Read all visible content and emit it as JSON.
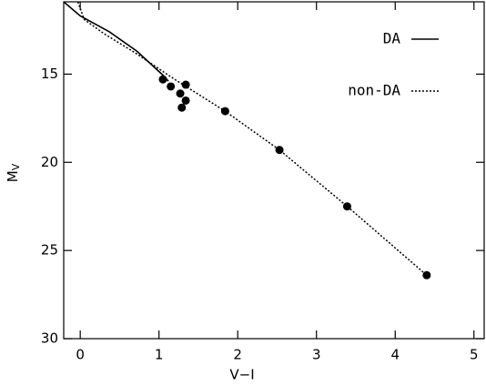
{
  "chart_data": {
    "type": "scatter",
    "x_label": "V−I",
    "y_label": "M",
    "y_label_subscript": "V",
    "xlim": [
      -0.21,
      5.13
    ],
    "ylim": [
      10.9,
      30
    ],
    "y_inverted": true,
    "xticks": [
      0,
      1,
      2,
      3,
      4,
      5
    ],
    "yticks": [
      15,
      20,
      25,
      30
    ],
    "color": "#000000",
    "legend": "upper right",
    "series": [
      {
        "name": "DA",
        "style": "solid",
        "x": [
          -0.21,
          0,
          0.37,
          0.72,
          1.06,
          1.12
        ],
        "values": [
          10.9,
          11.7,
          12.6,
          13.7,
          15.1,
          15.4
        ]
      },
      {
        "name": "non-DA",
        "style": "dotted",
        "x": [
          -0.03,
          0.05,
          0.3,
          0.7,
          1.2,
          1.84,
          2.53,
          3.39,
          4.4
        ],
        "values": [
          10.9,
          11.9,
          12.7,
          13.8,
          15.3,
          17.1,
          19.3,
          22.5,
          26.4
        ]
      }
    ],
    "points": {
      "x": [
        1.05,
        1.15,
        1.27,
        1.34,
        1.34,
        1.29,
        1.84,
        2.53,
        3.39,
        4.4
      ],
      "values": [
        15.3,
        15.7,
        16.1,
        15.6,
        16.5,
        16.9,
        17.1,
        19.3,
        22.5,
        26.4
      ]
    }
  }
}
